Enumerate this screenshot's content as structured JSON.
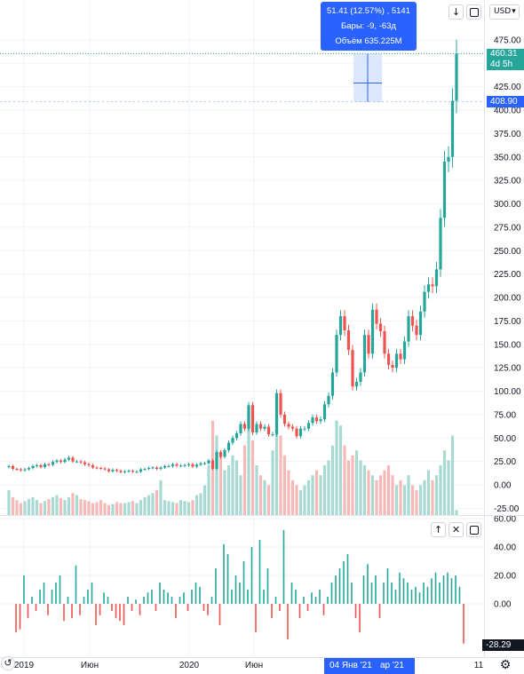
{
  "toolbar": {
    "currency": "USD",
    "currency_chevron": "▾",
    "scroll_down_icon": "arrow-down-icon",
    "maximize_icon": "maximize-icon"
  },
  "measure_tooltip": {
    "line1": "51.41 (12.57%) , 5141",
    "line2": "Бары: -9, -63д",
    "line3": "Объём 635.225M"
  },
  "price_labels": {
    "current": "460.31",
    "countdown": "4d 5h",
    "measure_low": "408.90",
    "oscillator_value": "-28.29"
  },
  "pane_controls": {
    "up_icon": "arrow-up-icon",
    "close_icon": "close-icon",
    "maximize_icon": "maximize-icon"
  },
  "time_axis": {
    "crosshair_date": "04 Янв '21",
    "partial_label": "ар '21",
    "right_edge_label": "11"
  },
  "settings_icon": "gear-icon",
  "reset_icon": "reset-icon",
  "colors": {
    "up": "#26a69a",
    "down": "#ef5350",
    "up_volume": "#a8dad3",
    "down_volume": "#f7b9b7",
    "accent": "#2962ff",
    "measure_fill": "#d6e4ff",
    "current_price": "#26a69a"
  },
  "chart_data": [
    {
      "type": "candlestick",
      "x_ticks": [
        "2019",
        "Июн",
        "2020",
        "Июн",
        "11"
      ],
      "y_ticks": [
        "475.00",
        "450.00",
        "425.00",
        "400.00",
        "375.00",
        "350.00",
        "325.00",
        "300.00",
        "275.00",
        "250.00",
        "225.00",
        "200.00",
        "175.00",
        "150.00",
        "125.00",
        "100.00",
        "75.00",
        "50.00",
        "25.00",
        "0.00",
        "-25.00"
      ],
      "ylim": [
        -25,
        490
      ],
      "current_price": 460.31,
      "close": [
        20.0,
        17.0,
        16.5,
        15.5,
        16.5,
        18.0,
        20.0,
        21.0,
        19.0,
        22.0,
        21.5,
        24.5,
        26.0,
        24.5,
        27.0,
        29.0,
        25.0,
        25.0,
        24.0,
        22.0,
        21.0,
        18.5,
        18.0,
        17.5,
        16.5,
        14.5,
        16.0,
        15.0,
        13.5,
        14.5,
        15.0,
        14.0,
        14.0,
        16.5,
        17.0,
        18.0,
        18.5,
        17.0,
        18.5,
        20.0,
        20.0,
        22.0,
        20.5,
        20.5,
        21.0,
        22.0,
        19.5,
        21.5,
        23.0,
        23.0,
        26.0,
        17.0,
        35.0,
        30.0,
        37.0,
        45.0,
        50.0,
        55.0,
        65.0,
        60.0,
        85.0,
        56.0,
        65.0,
        60.0,
        62.0,
        54.0,
        54.0,
        98.0,
        75.0,
        65.0,
        62.0,
        60.0,
        52.0,
        60.0,
        60.0,
        66.0,
        72.0,
        68.0,
        70.0,
        86.0,
        95.0,
        120.0,
        160.0,
        180.0,
        165.0,
        144.0,
        105.0,
        110.0,
        120.0,
        160.0,
        140.0,
        187.0,
        172.0,
        164.0,
        140.0,
        128.0,
        125.0,
        140.0,
        134.0,
        153.0,
        180.0,
        170.0,
        160.0,
        185.0,
        206.0,
        214.0,
        212.0,
        230.0,
        285.0,
        345.0,
        350.0,
        410.0,
        460.3
      ],
      "volume_relative": [
        0.25,
        0.18,
        0.15,
        0.12,
        0.14,
        0.16,
        0.18,
        0.15,
        0.12,
        0.14,
        0.16,
        0.18,
        0.2,
        0.17,
        0.15,
        0.18,
        0.22,
        0.2,
        0.16,
        0.15,
        0.14,
        0.12,
        0.13,
        0.15,
        0.12,
        0.1,
        0.11,
        0.13,
        0.12,
        0.12,
        0.13,
        0.14,
        0.12,
        0.15,
        0.18,
        0.2,
        0.22,
        0.25,
        0.35,
        0.15,
        0.14,
        0.13,
        0.12,
        0.15,
        0.14,
        0.13,
        0.15,
        0.2,
        0.22,
        0.3,
        0.5,
        0.95,
        0.8,
        0.6,
        0.45,
        0.5,
        0.6,
        0.55,
        0.4,
        0.7,
        0.9,
        0.75,
        0.5,
        0.4,
        0.35,
        0.3,
        0.65,
        1.0,
        0.8,
        0.6,
        0.45,
        0.35,
        0.3,
        0.25,
        0.3,
        0.35,
        0.4,
        0.45,
        0.4,
        0.5,
        0.55,
        0.7,
        0.95,
        0.9,
        0.7,
        0.55,
        0.6,
        0.65,
        0.55,
        0.5,
        0.45,
        0.4,
        0.35,
        0.4,
        0.45,
        0.5,
        0.4,
        0.3,
        0.35,
        0.3,
        0.4,
        0.3,
        0.25,
        0.3,
        0.35,
        0.45,
        0.35,
        0.4,
        0.5,
        0.65,
        0.55,
        0.8,
        0.05
      ],
      "measure": {
        "from": 408.9,
        "to": 460.31,
        "change": "51.41 (12.57%)",
        "bars": -9
      }
    },
    {
      "type": "bar",
      "description": "momentum oscillator pane",
      "y_ticks": [
        "60.00",
        "40.00",
        "20.00",
        "0.00"
      ],
      "ylim": [
        -30,
        62
      ],
      "last_value": -28.29,
      "values": [
        -20,
        -18,
        20,
        -10,
        5,
        -5,
        10,
        15,
        -8,
        10,
        15,
        20,
        -12,
        5,
        -10,
        27,
        -8,
        5,
        10,
        15,
        -15,
        -8,
        8,
        5,
        -5,
        -10,
        -12,
        -15,
        5,
        -5,
        3,
        -8,
        5,
        8,
        10,
        -5,
        15,
        10,
        8,
        5,
        -10,
        5,
        8,
        -5,
        10,
        15,
        12,
        -5,
        -8,
        5,
        25,
        -15,
        42,
        35,
        10,
        20,
        15,
        30,
        10,
        40,
        -20,
        45,
        10,
        25,
        -10,
        5,
        -5,
        52,
        -25,
        15,
        10,
        -10,
        5,
        -5,
        8,
        5,
        10,
        -8,
        5,
        15,
        20,
        25,
        30,
        35,
        15,
        -10,
        -20,
        20,
        28,
        15,
        20,
        -10,
        15,
        25,
        15,
        10,
        22,
        18,
        15,
        10,
        12,
        8,
        15,
        12,
        18,
        22,
        15,
        20,
        22,
        18,
        20,
        12,
        -28
      ]
    }
  ]
}
